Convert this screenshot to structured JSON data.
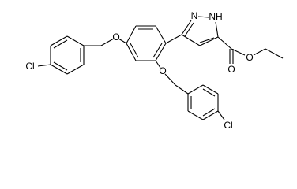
{
  "atoms": [
    "O",
    "O",
    "N",
    "NH",
    "O",
    "O",
    "Cl",
    "Cl"
  ]
}
